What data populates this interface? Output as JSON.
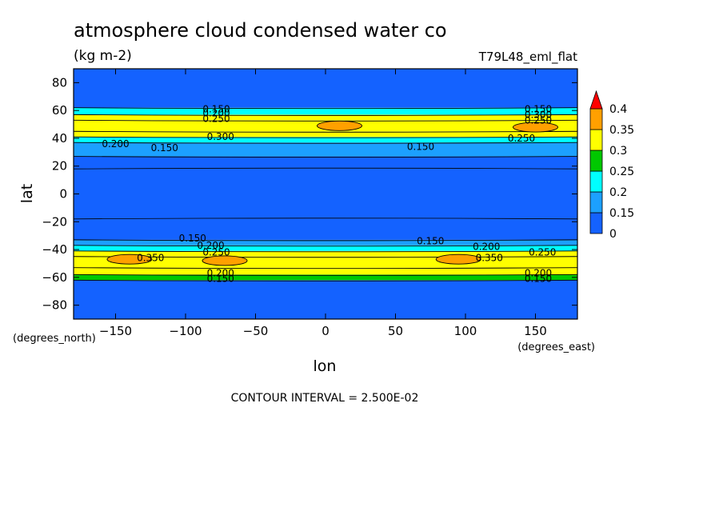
{
  "chart_data": {
    "type": "heatmap",
    "title": "atmosphere cloud condensed water co",
    "units": "(kg m-2)",
    "dataset_label": "T79L48_eml_flat",
    "xlabel": "lon",
    "ylabel": "lat",
    "x_units": "(degrees_east)",
    "y_units": "(degrees_north)",
    "xlim": [
      -180,
      180
    ],
    "ylim": [
      -90,
      90
    ],
    "x_ticks": [
      -150,
      -100,
      -50,
      0,
      50,
      100,
      150
    ],
    "y_ticks": [
      80,
      60,
      40,
      20,
      0,
      -20,
      -40,
      -60,
      -80
    ],
    "grid": false,
    "contour_interval": "CONTOUR INTERVAL = 2.500E-02",
    "colorbar": {
      "placement": "right",
      "levels": [
        0,
        0.15,
        0.2,
        0.25,
        0.3,
        0.35,
        0.4
      ],
      "level_labels": [
        "0",
        "0.15",
        "0.2",
        "0.25",
        "0.3",
        "0.35",
        "0.4"
      ],
      "colors": [
        "#1462ff",
        "#1ca0ff",
        "#00ffff",
        "#00c800",
        "#ffff00",
        "#ffa000",
        "#ff0000"
      ]
    },
    "bands": [
      {
        "lat_from": -90,
        "lat_to": -62,
        "value": 0.1
      },
      {
        "lat_from": -62,
        "lat_to": -58,
        "value": 0.275
      },
      {
        "lat_from": -58,
        "lat_to": -53,
        "value": 0.325
      },
      {
        "lat_from": -53,
        "lat_to": -45,
        "value": 0.34
      },
      {
        "lat_from": -45,
        "lat_to": -41,
        "value": 0.3
      },
      {
        "lat_from": -41,
        "lat_to": -37,
        "value": 0.225
      },
      {
        "lat_from": -37,
        "lat_to": -33,
        "value": 0.175
      },
      {
        "lat_from": -33,
        "lat_to": 27,
        "value": 0.1
      },
      {
        "lat_from": 27,
        "lat_to": 37,
        "value": 0.175
      },
      {
        "lat_from": 37,
        "lat_to": 41,
        "value": 0.225
      },
      {
        "lat_from": 41,
        "lat_to": 45,
        "value": 0.3
      },
      {
        "lat_from": 45,
        "lat_to": 53,
        "value": 0.34
      },
      {
        "lat_from": 53,
        "lat_to": 57,
        "value": 0.3
      },
      {
        "lat_from": 57,
        "lat_to": 62,
        "value": 0.225
      },
      {
        "lat_from": 62,
        "lat_to": 90,
        "value": 0.1
      }
    ],
    "maxima": [
      {
        "lon": 10,
        "lat": 49,
        "value": 0.36
      },
      {
        "lon": 150,
        "lat": 48,
        "value": 0.36
      },
      {
        "lon": -72,
        "lat": -48,
        "value": 0.36
      },
      {
        "lon": 95,
        "lat": -47,
        "value": 0.36
      },
      {
        "lon": -140,
        "lat": -47,
        "value": 0.36
      }
    ],
    "contour_labels": [
      {
        "lon": -78,
        "lat": 61,
        "text": "0.150"
      },
      {
        "lon": -78,
        "lat": 58,
        "text": "0.200"
      },
      {
        "lon": -78,
        "lat": 54,
        "text": "0.250"
      },
      {
        "lon": 152,
        "lat": 61,
        "text": "0.150"
      },
      {
        "lon": 152,
        "lat": 57,
        "text": "0.300"
      },
      {
        "lon": 152,
        "lat": 53,
        "text": "0.250"
      },
      {
        "lon": -75,
        "lat": 41,
        "text": "0.300"
      },
      {
        "lon": -150,
        "lat": 36,
        "text": "0.200"
      },
      {
        "lon": -115,
        "lat": 33,
        "text": "0.150"
      },
      {
        "lon": 68,
        "lat": 34,
        "text": "0.150"
      },
      {
        "lon": 140,
        "lat": 40,
        "text": "0.250"
      },
      {
        "lon": -95,
        "lat": -32,
        "text": "0.150"
      },
      {
        "lon": -82,
        "lat": -37,
        "text": "0.200"
      },
      {
        "lon": -78,
        "lat": -42,
        "text": "0.250"
      },
      {
        "lon": 75,
        "lat": -34,
        "text": "0.150"
      },
      {
        "lon": 115,
        "lat": -38,
        "text": "0.200"
      },
      {
        "lon": 155,
        "lat": -42,
        "text": "0.250"
      },
      {
        "lon": -125,
        "lat": -46,
        "text": "0.350"
      },
      {
        "lon": 117,
        "lat": -46,
        "text": "0.350"
      },
      {
        "lon": -75,
        "lat": -57,
        "text": "0.200"
      },
      {
        "lon": -75,
        "lat": -61,
        "text": "0.150"
      },
      {
        "lon": 152,
        "lat": -57,
        "text": "0.200"
      },
      {
        "lon": 152,
        "lat": -61,
        "text": "0.150"
      }
    ],
    "reference_lines": [
      18,
      -18
    ]
  }
}
